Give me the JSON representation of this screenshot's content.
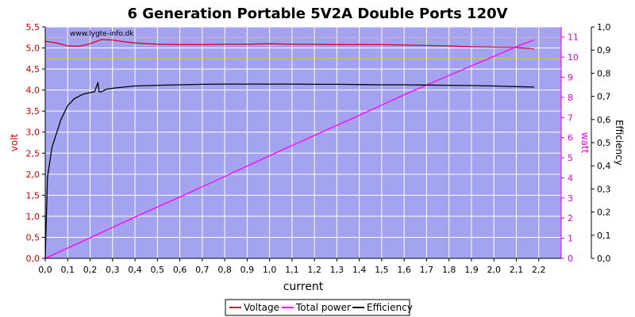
{
  "chart_data": {
    "type": "line",
    "title": "6 Generation Portable 5V2A Double Ports 120V",
    "watermark": "www.lygte-info.dk",
    "xlabel": "current",
    "ylabel_left": "volt",
    "ylabel_mid": "watt",
    "ylabel_right": "Efficiency",
    "xlim": [
      0,
      2.3
    ],
    "ylim_left": [
      0,
      5.5
    ],
    "ylim_mid": [
      0,
      11.5
    ],
    "ylim_right": [
      0,
      1.0
    ],
    "x_ticks": [
      "0,0",
      "0,1",
      "0,2",
      "0,3",
      "0,4",
      "0,5",
      "0,6",
      "0,7",
      "0,8",
      "0,9",
      "1,0",
      "1,1",
      "1,2",
      "1,3",
      "1,4",
      "1,5",
      "1,6",
      "1,7",
      "1,8",
      "1,9",
      "2,0",
      "2,1",
      "2,2"
    ],
    "left_ticks": [
      "0,0",
      "0,5",
      "1,0",
      "1,5",
      "2,0",
      "2,5",
      "3,0",
      "3,5",
      "4,0",
      "4,5",
      "5,0",
      "5,5"
    ],
    "mid_ticks": [
      "0",
      "1",
      "2",
      "3",
      "4",
      "5",
      "6",
      "7",
      "8",
      "9",
      "10",
      "11"
    ],
    "right_ticks": [
      "0,0",
      "0,1",
      "0,2",
      "0,3",
      "0,4",
      "0,5",
      "0,6",
      "0,7",
      "0,8",
      "0,9",
      "1,0"
    ],
    "reference_lines_left": [
      4.75,
      5.25
    ],
    "grid": true,
    "legend_position": "bottom-center",
    "colors": {
      "plot_bg": "#a3a3f0",
      "grid": "#ffffff",
      "voltage": "#e00020",
      "power": "#ff00ff",
      "efficiency": "#000000",
      "reference": "#d4d400",
      "left_axis": "#cc0000",
      "mid_axis": "#e000e0",
      "right_axis": "#000000"
    },
    "series": [
      {
        "name": "Voltage",
        "axis": "left",
        "points": [
          [
            0.0,
            5.16
          ],
          [
            0.05,
            5.12
          ],
          [
            0.1,
            5.05
          ],
          [
            0.15,
            5.04
          ],
          [
            0.2,
            5.1
          ],
          [
            0.25,
            5.2
          ],
          [
            0.3,
            5.19
          ],
          [
            0.35,
            5.15
          ],
          [
            0.4,
            5.12
          ],
          [
            0.5,
            5.09
          ],
          [
            0.6,
            5.08
          ],
          [
            0.7,
            5.08
          ],
          [
            0.8,
            5.09
          ],
          [
            0.9,
            5.09
          ],
          [
            1.0,
            5.1
          ],
          [
            1.1,
            5.09
          ],
          [
            1.2,
            5.09
          ],
          [
            1.3,
            5.08
          ],
          [
            1.4,
            5.08
          ],
          [
            1.5,
            5.08
          ],
          [
            1.6,
            5.07
          ],
          [
            1.7,
            5.06
          ],
          [
            1.8,
            5.05
          ],
          [
            1.9,
            5.03
          ],
          [
            2.0,
            5.02
          ],
          [
            2.1,
            5.01
          ],
          [
            2.18,
            4.98
          ]
        ]
      },
      {
        "name": "Total power",
        "axis": "mid",
        "points": [
          [
            0.0,
            0.0
          ],
          [
            0.2,
            1.02
          ],
          [
            0.4,
            2.05
          ],
          [
            0.6,
            3.05
          ],
          [
            0.8,
            4.07
          ],
          [
            1.0,
            5.1
          ],
          [
            1.2,
            6.11
          ],
          [
            1.4,
            7.11
          ],
          [
            1.6,
            8.13
          ],
          [
            1.8,
            9.09
          ],
          [
            2.0,
            10.04
          ],
          [
            2.1,
            10.52
          ],
          [
            2.18,
            10.86
          ]
        ]
      },
      {
        "name": "Efficiency",
        "axis": "right",
        "points": [
          [
            0.0,
            0.0
          ],
          [
            0.01,
            0.35
          ],
          [
            0.03,
            0.48
          ],
          [
            0.07,
            0.6
          ],
          [
            0.1,
            0.66
          ],
          [
            0.13,
            0.69
          ],
          [
            0.17,
            0.71
          ],
          [
            0.22,
            0.72
          ],
          [
            0.235,
            0.76
          ],
          [
            0.24,
            0.72
          ],
          [
            0.25,
            0.72
          ],
          [
            0.27,
            0.73
          ],
          [
            0.3,
            0.735
          ],
          [
            0.35,
            0.74
          ],
          [
            0.4,
            0.745
          ],
          [
            0.5,
            0.748
          ],
          [
            0.6,
            0.75
          ],
          [
            0.7,
            0.752
          ],
          [
            0.8,
            0.753
          ],
          [
            0.9,
            0.753
          ],
          [
            1.0,
            0.753
          ],
          [
            1.1,
            0.753
          ],
          [
            1.2,
            0.752
          ],
          [
            1.3,
            0.752
          ],
          [
            1.4,
            0.751
          ],
          [
            1.5,
            0.75
          ],
          [
            1.6,
            0.75
          ],
          [
            1.7,
            0.749
          ],
          [
            1.8,
            0.748
          ],
          [
            1.9,
            0.747
          ],
          [
            2.0,
            0.745
          ],
          [
            2.1,
            0.742
          ],
          [
            2.18,
            0.74
          ]
        ]
      }
    ]
  }
}
